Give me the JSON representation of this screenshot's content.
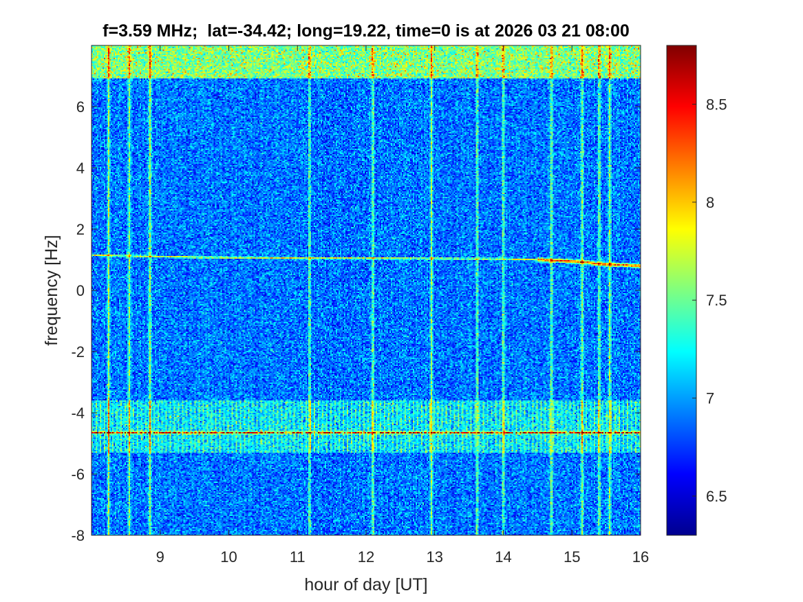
{
  "chart_data": {
    "type": "heatmap",
    "title": "f=3.59 MHz;  lat=-34.42; long=19.22, time=0 is at 2026 03 21 08:00",
    "xlabel": "hour of day [UT]",
    "ylabel": "frequency [Hz]",
    "xlim": [
      8,
      16
    ],
    "ylim": [
      -8,
      8
    ],
    "xticks": [
      9,
      10,
      11,
      12,
      13,
      14,
      15,
      16
    ],
    "xtick_labels": [
      "9",
      "10",
      "11",
      "12",
      "13",
      "14",
      "15",
      "16"
    ],
    "yticks": [
      -8,
      -6,
      -4,
      -2,
      0,
      2,
      4,
      6
    ],
    "ytick_labels": [
      "-8",
      "-6",
      "-4",
      "-2",
      "0",
      "2",
      "4",
      "6"
    ],
    "colormap": "jet",
    "clim": [
      6.3,
      8.8
    ],
    "colorbar_ticks": [
      6.5,
      7,
      7.5,
      8,
      8.5
    ],
    "colorbar_tick_labels": [
      "6.5",
      "7",
      "7.5",
      "8",
      "8.5"
    ],
    "background_level": 6.9,
    "features": {
      "doppler_trace": {
        "points": [
          [
            8.0,
            1.15
          ],
          [
            9.0,
            1.1
          ],
          [
            10.0,
            1.07
          ],
          [
            11.0,
            1.05
          ],
          [
            12.0,
            1.05
          ],
          [
            13.0,
            1.04
          ],
          [
            14.0,
            1.02
          ],
          [
            14.5,
            1.0
          ],
          [
            15.0,
            0.95
          ],
          [
            15.5,
            0.85
          ],
          [
            16.0,
            0.8
          ]
        ],
        "level": 8.4
      },
      "interference_band": {
        "frequency": -4.65,
        "from": -5.3,
        "to": -3.6,
        "level": 8.3
      },
      "top_band": {
        "from": 6.9,
        "to": 8.0,
        "level": 8.0
      },
      "vertical_stripes": [
        8.25,
        8.55,
        8.85,
        11.18,
        12.1,
        12.95,
        13.62,
        14.0,
        14.7,
        15.15,
        15.4,
        15.55
      ],
      "stripe_level": 7.6
    }
  }
}
